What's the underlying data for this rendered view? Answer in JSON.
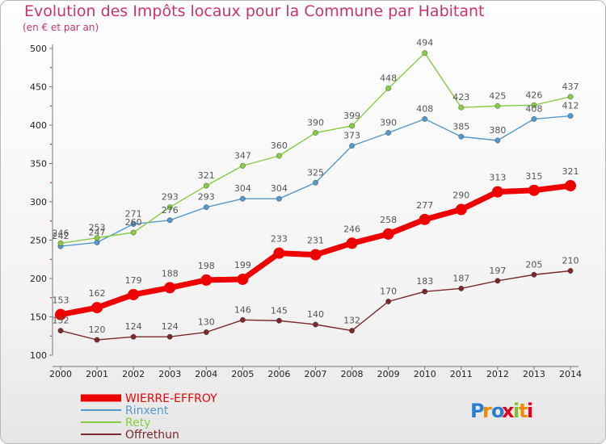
{
  "title": "Evolution des Impôts locaux pour la Commune par Habitant",
  "subtitle": "(en € et par an)",
  "logo_text": "Proxiti",
  "chart_data": {
    "type": "line",
    "x": [
      2000,
      2001,
      2002,
      2003,
      2004,
      2005,
      2006,
      2007,
      2008,
      2009,
      2010,
      2011,
      2012,
      2013,
      2014
    ],
    "ylim": [
      100,
      500
    ],
    "yticks": [
      100,
      150,
      200,
      250,
      300,
      350,
      400,
      450,
      500
    ],
    "grid": false,
    "legend_position": "bottom-left",
    "series": [
      {
        "name": "WIERRE-EFFROY",
        "color": "#ee0000",
        "values": [
          153,
          162,
          179,
          188,
          198,
          199,
          233,
          231,
          246,
          258,
          277,
          290,
          313,
          315,
          321
        ]
      },
      {
        "name": "Rinxent",
        "color": "#5599cc",
        "values": [
          242,
          247,
          271,
          276,
          293,
          304,
          304,
          325,
          373,
          390,
          408,
          385,
          380,
          408,
          412
        ]
      },
      {
        "name": "Rety",
        "color": "#88cc44",
        "values": [
          246,
          253,
          260,
          293,
          321,
          347,
          360,
          390,
          399,
          448,
          494,
          423,
          425,
          426,
          437
        ]
      },
      {
        "name": "Offrethun",
        "color": "#7a2a2a",
        "values": [
          132,
          120,
          124,
          124,
          130,
          146,
          145,
          140,
          132,
          170,
          183,
          187,
          197,
          205,
          210
        ]
      }
    ]
  }
}
